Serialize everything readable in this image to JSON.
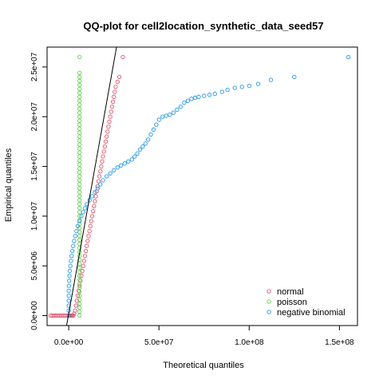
{
  "chart_data": {
    "type": "scatter",
    "title": "QQ-plot for cell2location_synthetic_data_seed57",
    "xlabel": "Theoretical quantiles",
    "ylabel": "Empirical quantiles",
    "xlim": [
      -12000000,
      160000000
    ],
    "ylim": [
      -1000000,
      27000000
    ],
    "x_ticks": [
      {
        "value": 0,
        "label": "0.0e+00"
      },
      {
        "value": 50000000,
        "label": "5.0e+07"
      },
      {
        "value": 100000000,
        "label": "1.0e+08"
      },
      {
        "value": 150000000,
        "label": "1.5e+08"
      }
    ],
    "y_ticks": [
      {
        "value": 0,
        "label": "0.0e+00"
      },
      {
        "value": 5000000,
        "label": "5.0e+06"
      },
      {
        "value": 10000000,
        "label": "1.0e+07"
      },
      {
        "value": 15000000,
        "label": "1.5e+07"
      },
      {
        "value": 20000000,
        "label": "2.0e+07"
      },
      {
        "value": 25000000,
        "label": "2.5e+07"
      }
    ],
    "reference_line": {
      "x": [
        -1200000,
        26500000
      ],
      "y": [
        -1000000,
        27000000
      ],
      "color": "#000000"
    },
    "legend_position": "bottom-right",
    "series": [
      {
        "name": "normal",
        "color": "#DF536B",
        "points": [
          [
            -10000000,
            0
          ],
          [
            -9000000,
            0
          ],
          [
            -8000000,
            0
          ],
          [
            -7000000,
            0
          ],
          [
            -6000000,
            0
          ],
          [
            -5000000,
            0
          ],
          [
            -4000000,
            0
          ],
          [
            -3000000,
            0
          ],
          [
            -2000000,
            0
          ],
          [
            -1000000,
            0
          ],
          [
            0,
            0
          ],
          [
            500000,
            0
          ],
          [
            1000000,
            0
          ],
          [
            1500000,
            0
          ],
          [
            2000000,
            0
          ],
          [
            2500000,
            0
          ],
          [
            3000000,
            200000
          ],
          [
            3500000,
            500000
          ],
          [
            4000000,
            1000000
          ],
          [
            4500000,
            1500000
          ],
          [
            5000000,
            2000000
          ],
          [
            5500000,
            2500000
          ],
          [
            6000000,
            3000000
          ],
          [
            6500000,
            3500000
          ],
          [
            7000000,
            4000000
          ],
          [
            7500000,
            4500000
          ],
          [
            8000000,
            5000000
          ],
          [
            8500000,
            5500000
          ],
          [
            9000000,
            6000000
          ],
          [
            9500000,
            6500000
          ],
          [
            10000000,
            7000000
          ],
          [
            10500000,
            7500000
          ],
          [
            11000000,
            8000000
          ],
          [
            11500000,
            8500000
          ],
          [
            12000000,
            9000000
          ],
          [
            12500000,
            9500000
          ],
          [
            13000000,
            10000000
          ],
          [
            13500000,
            10500000
          ],
          [
            14000000,
            11000000
          ],
          [
            14500000,
            11500000
          ],
          [
            15000000,
            12000000
          ],
          [
            15500000,
            12500000
          ],
          [
            16000000,
            13000000
          ],
          [
            16500000,
            13500000
          ],
          [
            17000000,
            14000000
          ],
          [
            17500000,
            14500000
          ],
          [
            18000000,
            15000000
          ],
          [
            18500000,
            15500000
          ],
          [
            19000000,
            16000000
          ],
          [
            19500000,
            16500000
          ],
          [
            20000000,
            17000000
          ],
          [
            20500000,
            17500000
          ],
          [
            21000000,
            18000000
          ],
          [
            21500000,
            18500000
          ],
          [
            22000000,
            19000000
          ],
          [
            22500000,
            19500000
          ],
          [
            23000000,
            20000000
          ],
          [
            23500000,
            20500000
          ],
          [
            24000000,
            21000000
          ],
          [
            24500000,
            21500000
          ],
          [
            25000000,
            22000000
          ],
          [
            25500000,
            22500000
          ],
          [
            26000000,
            23000000
          ],
          [
            27000000,
            23500000
          ],
          [
            28000000,
            24000000
          ],
          [
            30000000,
            26000000
          ]
        ]
      },
      {
        "name": "poisson",
        "color": "#61D04F",
        "points": [
          [
            6000000,
            0
          ],
          [
            6000000,
            400000
          ],
          [
            6000000,
            800000
          ],
          [
            6000000,
            1200000
          ],
          [
            6000000,
            1600000
          ],
          [
            6000000,
            2000000
          ],
          [
            6000000,
            2400000
          ],
          [
            6000000,
            2800000
          ],
          [
            6000000,
            3200000
          ],
          [
            6000000,
            3600000
          ],
          [
            6000000,
            4000000
          ],
          [
            6000000,
            4400000
          ],
          [
            6000000,
            4800000
          ],
          [
            6000000,
            5200000
          ],
          [
            6000000,
            5600000
          ],
          [
            6000000,
            6000000
          ],
          [
            6000000,
            6400000
          ],
          [
            6000000,
            6800000
          ],
          [
            6000000,
            7200000
          ],
          [
            6000000,
            7600000
          ],
          [
            6000000,
            8000000
          ],
          [
            6000000,
            8400000
          ],
          [
            6000000,
            8800000
          ],
          [
            6000000,
            9200000
          ],
          [
            6000000,
            9600000
          ],
          [
            6000000,
            10000000
          ],
          [
            6000000,
            10400000
          ],
          [
            6000000,
            10800000
          ],
          [
            6000000,
            11200000
          ],
          [
            6000000,
            11600000
          ],
          [
            6000000,
            12000000
          ],
          [
            6000000,
            12400000
          ],
          [
            6000000,
            12800000
          ],
          [
            6000000,
            13200000
          ],
          [
            6000000,
            13600000
          ],
          [
            6000000,
            14000000
          ],
          [
            6000000,
            14400000
          ],
          [
            6000000,
            14800000
          ],
          [
            6000000,
            15200000
          ],
          [
            6000000,
            15600000
          ],
          [
            6000000,
            16000000
          ],
          [
            6000000,
            16400000
          ],
          [
            6000000,
            16800000
          ],
          [
            6000000,
            17200000
          ],
          [
            6000000,
            17600000
          ],
          [
            6000000,
            18000000
          ],
          [
            6000000,
            18400000
          ],
          [
            6000000,
            18800000
          ],
          [
            6000000,
            19200000
          ],
          [
            6000000,
            19600000
          ],
          [
            6000000,
            20000000
          ],
          [
            6000000,
            20400000
          ],
          [
            6000000,
            20800000
          ],
          [
            6000000,
            21200000
          ],
          [
            6000000,
            21600000
          ],
          [
            6000000,
            22000000
          ],
          [
            6000000,
            22400000
          ],
          [
            6000000,
            22800000
          ],
          [
            6000000,
            23200000
          ],
          [
            6000000,
            23600000
          ],
          [
            6000000,
            24000000
          ],
          [
            6000000,
            24400000
          ],
          [
            6000000,
            26000000
          ]
        ]
      },
      {
        "name": "negative binomial",
        "color": "#2297E6",
        "points": [
          [
            0,
            0
          ],
          [
            0,
            500000
          ],
          [
            0,
            1000000
          ],
          [
            0,
            1500000
          ],
          [
            0,
            2000000
          ],
          [
            0,
            2500000
          ],
          [
            100000,
            3000000
          ],
          [
            200000,
            3500000
          ],
          [
            400000,
            4000000
          ],
          [
            600000,
            4500000
          ],
          [
            900000,
            5000000
          ],
          [
            1200000,
            5500000
          ],
          [
            1600000,
            6000000
          ],
          [
            2000000,
            6500000
          ],
          [
            2500000,
            7000000
          ],
          [
            3000000,
            7500000
          ],
          [
            3600000,
            8000000
          ],
          [
            4300000,
            8500000
          ],
          [
            5000000,
            9000000
          ],
          [
            6000000,
            9500000
          ],
          [
            7000000,
            10000000
          ],
          [
            8000000,
            10400000
          ],
          [
            9000000,
            10800000
          ],
          [
            10000000,
            11200000
          ],
          [
            11500000,
            11600000
          ],
          [
            13000000,
            12000000
          ],
          [
            14500000,
            12400000
          ],
          [
            16000000,
            12800000
          ],
          [
            17500000,
            13200000
          ],
          [
            19000000,
            13600000
          ],
          [
            21000000,
            14000000
          ],
          [
            23000000,
            14300000
          ],
          [
            25000000,
            14600000
          ],
          [
            27000000,
            14900000
          ],
          [
            29000000,
            15100000
          ],
          [
            31000000,
            15300000
          ],
          [
            33000000,
            15500000
          ],
          [
            35000000,
            15700000
          ],
          [
            36500000,
            16000000
          ],
          [
            38000000,
            16300000
          ],
          [
            39500000,
            16700000
          ],
          [
            41000000,
            17000000
          ],
          [
            42500000,
            17300000
          ],
          [
            44000000,
            17700000
          ],
          [
            45500000,
            18200000
          ],
          [
            47000000,
            18700000
          ],
          [
            48500000,
            19200000
          ],
          [
            50000000,
            19700000
          ],
          [
            52000000,
            20000000
          ],
          [
            54000000,
            20100000
          ],
          [
            56000000,
            20200000
          ],
          [
            58000000,
            20400000
          ],
          [
            60000000,
            20700000
          ],
          [
            62000000,
            21000000
          ],
          [
            64000000,
            21400000
          ],
          [
            66000000,
            21600000
          ],
          [
            68000000,
            21800000
          ],
          [
            70000000,
            21900000
          ],
          [
            72000000,
            22000000
          ],
          [
            75000000,
            22100000
          ],
          [
            78000000,
            22200000
          ],
          [
            81000000,
            22300000
          ],
          [
            85000000,
            22500000
          ],
          [
            88000000,
            22700000
          ],
          [
            92000000,
            22900000
          ],
          [
            96000000,
            23000000
          ],
          [
            100000000,
            23100000
          ],
          [
            105000000,
            23300000
          ],
          [
            112000000,
            23700000
          ],
          [
            125000000,
            24000000
          ],
          [
            155000000,
            26000000
          ]
        ]
      }
    ]
  }
}
